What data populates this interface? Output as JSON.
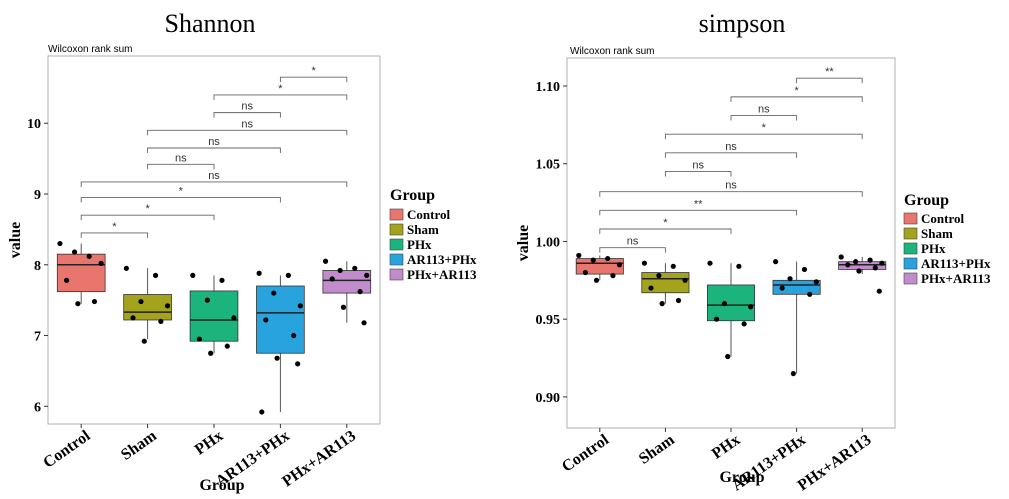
{
  "chart_data": [
    {
      "type": "box",
      "title": "Shannon",
      "subtitle": "Wilcoxon rank sum",
      "xlabel": "Group",
      "ylabel": "value",
      "ylim": [
        5.75,
        10.95
      ],
      "yticks": [
        6,
        7,
        8,
        9,
        10
      ],
      "legend": {
        "title": "Group",
        "placement": "right",
        "items": [
          {
            "label": "Control",
            "color": "#E8766E"
          },
          {
            "label": "Sham",
            "color": "#A3A41C"
          },
          {
            "label": "PHx",
            "color": "#1BB47C"
          },
          {
            "label": "AR113+PHx",
            "color": "#28A3DE"
          },
          {
            "label": "PHx+AR113",
            "color": "#C28BCB"
          }
        ]
      },
      "categories": [
        "Control",
        "Sham",
        "PHx",
        "AR113+PHx",
        "PHx+AR113"
      ],
      "boxes": [
        {
          "min": 7.45,
          "q1": 7.62,
          "median": 8.0,
          "q3": 8.15,
          "max": 8.3
        },
        {
          "min": 6.95,
          "q1": 7.22,
          "median": 7.33,
          "q3": 7.58,
          "max": 7.95
        },
        {
          "min": 6.75,
          "q1": 6.92,
          "median": 7.22,
          "q3": 7.63,
          "max": 7.85
        },
        {
          "min": 5.92,
          "q1": 6.75,
          "median": 7.32,
          "q3": 7.7,
          "max": 7.85
        },
        {
          "min": 7.18,
          "q1": 7.6,
          "median": 7.78,
          "q3": 7.92,
          "max": 8.05
        }
      ],
      "points": [
        [
          8.3,
          8.12,
          8.18,
          8.02,
          7.78,
          7.48,
          7.45
        ],
        [
          7.95,
          7.85,
          7.48,
          7.42,
          7.25,
          7.2,
          6.92
        ],
        [
          7.85,
          7.78,
          7.5,
          7.25,
          6.95,
          6.85,
          6.75
        ],
        [
          7.88,
          7.85,
          7.6,
          7.42,
          7.22,
          7.0,
          6.68,
          6.6,
          5.92
        ],
        [
          8.05,
          7.95,
          7.92,
          7.85,
          7.8,
          7.62,
          7.4,
          7.18
        ]
      ],
      "comparisons": [
        {
          "from": 0,
          "to": 1,
          "label": "*",
          "y": 8.45
        },
        {
          "from": 0,
          "to": 2,
          "label": "*",
          "y": 8.7
        },
        {
          "from": 0,
          "to": 3,
          "label": "*",
          "y": 8.95
        },
        {
          "from": 0,
          "to": 4,
          "label": "ns",
          "y": 9.17
        },
        {
          "from": 1,
          "to": 2,
          "label": "ns",
          "y": 9.42
        },
        {
          "from": 1,
          "to": 3,
          "label": "ns",
          "y": 9.65
        },
        {
          "from": 1,
          "to": 4,
          "label": "ns",
          "y": 9.9
        },
        {
          "from": 2,
          "to": 3,
          "label": "ns",
          "y": 10.15
        },
        {
          "from": 2,
          "to": 4,
          "label": "*",
          "y": 10.4
        },
        {
          "from": 3,
          "to": 4,
          "label": "*",
          "y": 10.65
        }
      ]
    },
    {
      "type": "box",
      "title": "simpson",
      "subtitle": "Wilcoxon rank sum",
      "xlabel": "Group",
      "ylabel": "value",
      "ylim": [
        0.88,
        1.118
      ],
      "yticks": [
        0.9,
        0.95,
        1.0,
        1.05,
        1.1
      ],
      "ytick_labels": [
        "0.90",
        "0.95",
        "1.00",
        "1.05",
        "1.10"
      ],
      "legend": {
        "title": "Group",
        "placement": "right",
        "items": [
          {
            "label": "Control",
            "color": "#E8766E"
          },
          {
            "label": "Sham",
            "color": "#A3A41C"
          },
          {
            "label": "PHx",
            "color": "#1BB47C"
          },
          {
            "label": "AR113+PHx",
            "color": "#28A3DE"
          },
          {
            "label": "PHx+AR113",
            "color": "#C28BCB"
          }
        ]
      },
      "categories": [
        "Control",
        "Sham",
        "PHx",
        "AR113+PHx",
        "PHx+AR113"
      ],
      "boxes": [
        {
          "min": 0.975,
          "q1": 0.979,
          "median": 0.986,
          "q3": 0.989,
          "max": 0.991
        },
        {
          "min": 0.96,
          "q1": 0.967,
          "median": 0.976,
          "q3": 0.98,
          "max": 0.986
        },
        {
          "min": 0.926,
          "q1": 0.949,
          "median": 0.959,
          "q3": 0.972,
          "max": 0.986
        },
        {
          "min": 0.915,
          "q1": 0.966,
          "median": 0.972,
          "q3": 0.975,
          "max": 0.987
        },
        {
          "min": 0.979,
          "q1": 0.982,
          "median": 0.985,
          "q3": 0.987,
          "max": 0.99
        }
      ],
      "points": [
        [
          0.991,
          0.989,
          0.988,
          0.985,
          0.98,
          0.978,
          0.975
        ],
        [
          0.986,
          0.984,
          0.978,
          0.975,
          0.97,
          0.962,
          0.96
        ],
        [
          0.986,
          0.984,
          0.96,
          0.958,
          0.95,
          0.947,
          0.926
        ],
        [
          0.987,
          0.982,
          0.976,
          0.974,
          0.97,
          0.966,
          0.915
        ],
        [
          0.99,
          0.988,
          0.987,
          0.986,
          0.985,
          0.983,
          0.981,
          0.968
        ]
      ],
      "comparisons": [
        {
          "from": 0,
          "to": 1,
          "label": "ns",
          "y": 0.996
        },
        {
          "from": 0,
          "to": 2,
          "label": "*",
          "y": 1.008
        },
        {
          "from": 0,
          "to": 3,
          "label": "**",
          "y": 1.02
        },
        {
          "from": 0,
          "to": 4,
          "label": "ns",
          "y": 1.032
        },
        {
          "from": 1,
          "to": 2,
          "label": "ns",
          "y": 1.045
        },
        {
          "from": 1,
          "to": 3,
          "label": "ns",
          "y": 1.057
        },
        {
          "from": 1,
          "to": 4,
          "label": "*",
          "y": 1.069
        },
        {
          "from": 2,
          "to": 3,
          "label": "ns",
          "y": 1.081
        },
        {
          "from": 2,
          "to": 4,
          "label": "*",
          "y": 1.093
        },
        {
          "from": 3,
          "to": 4,
          "label": "**",
          "y": 1.105
        }
      ]
    }
  ]
}
